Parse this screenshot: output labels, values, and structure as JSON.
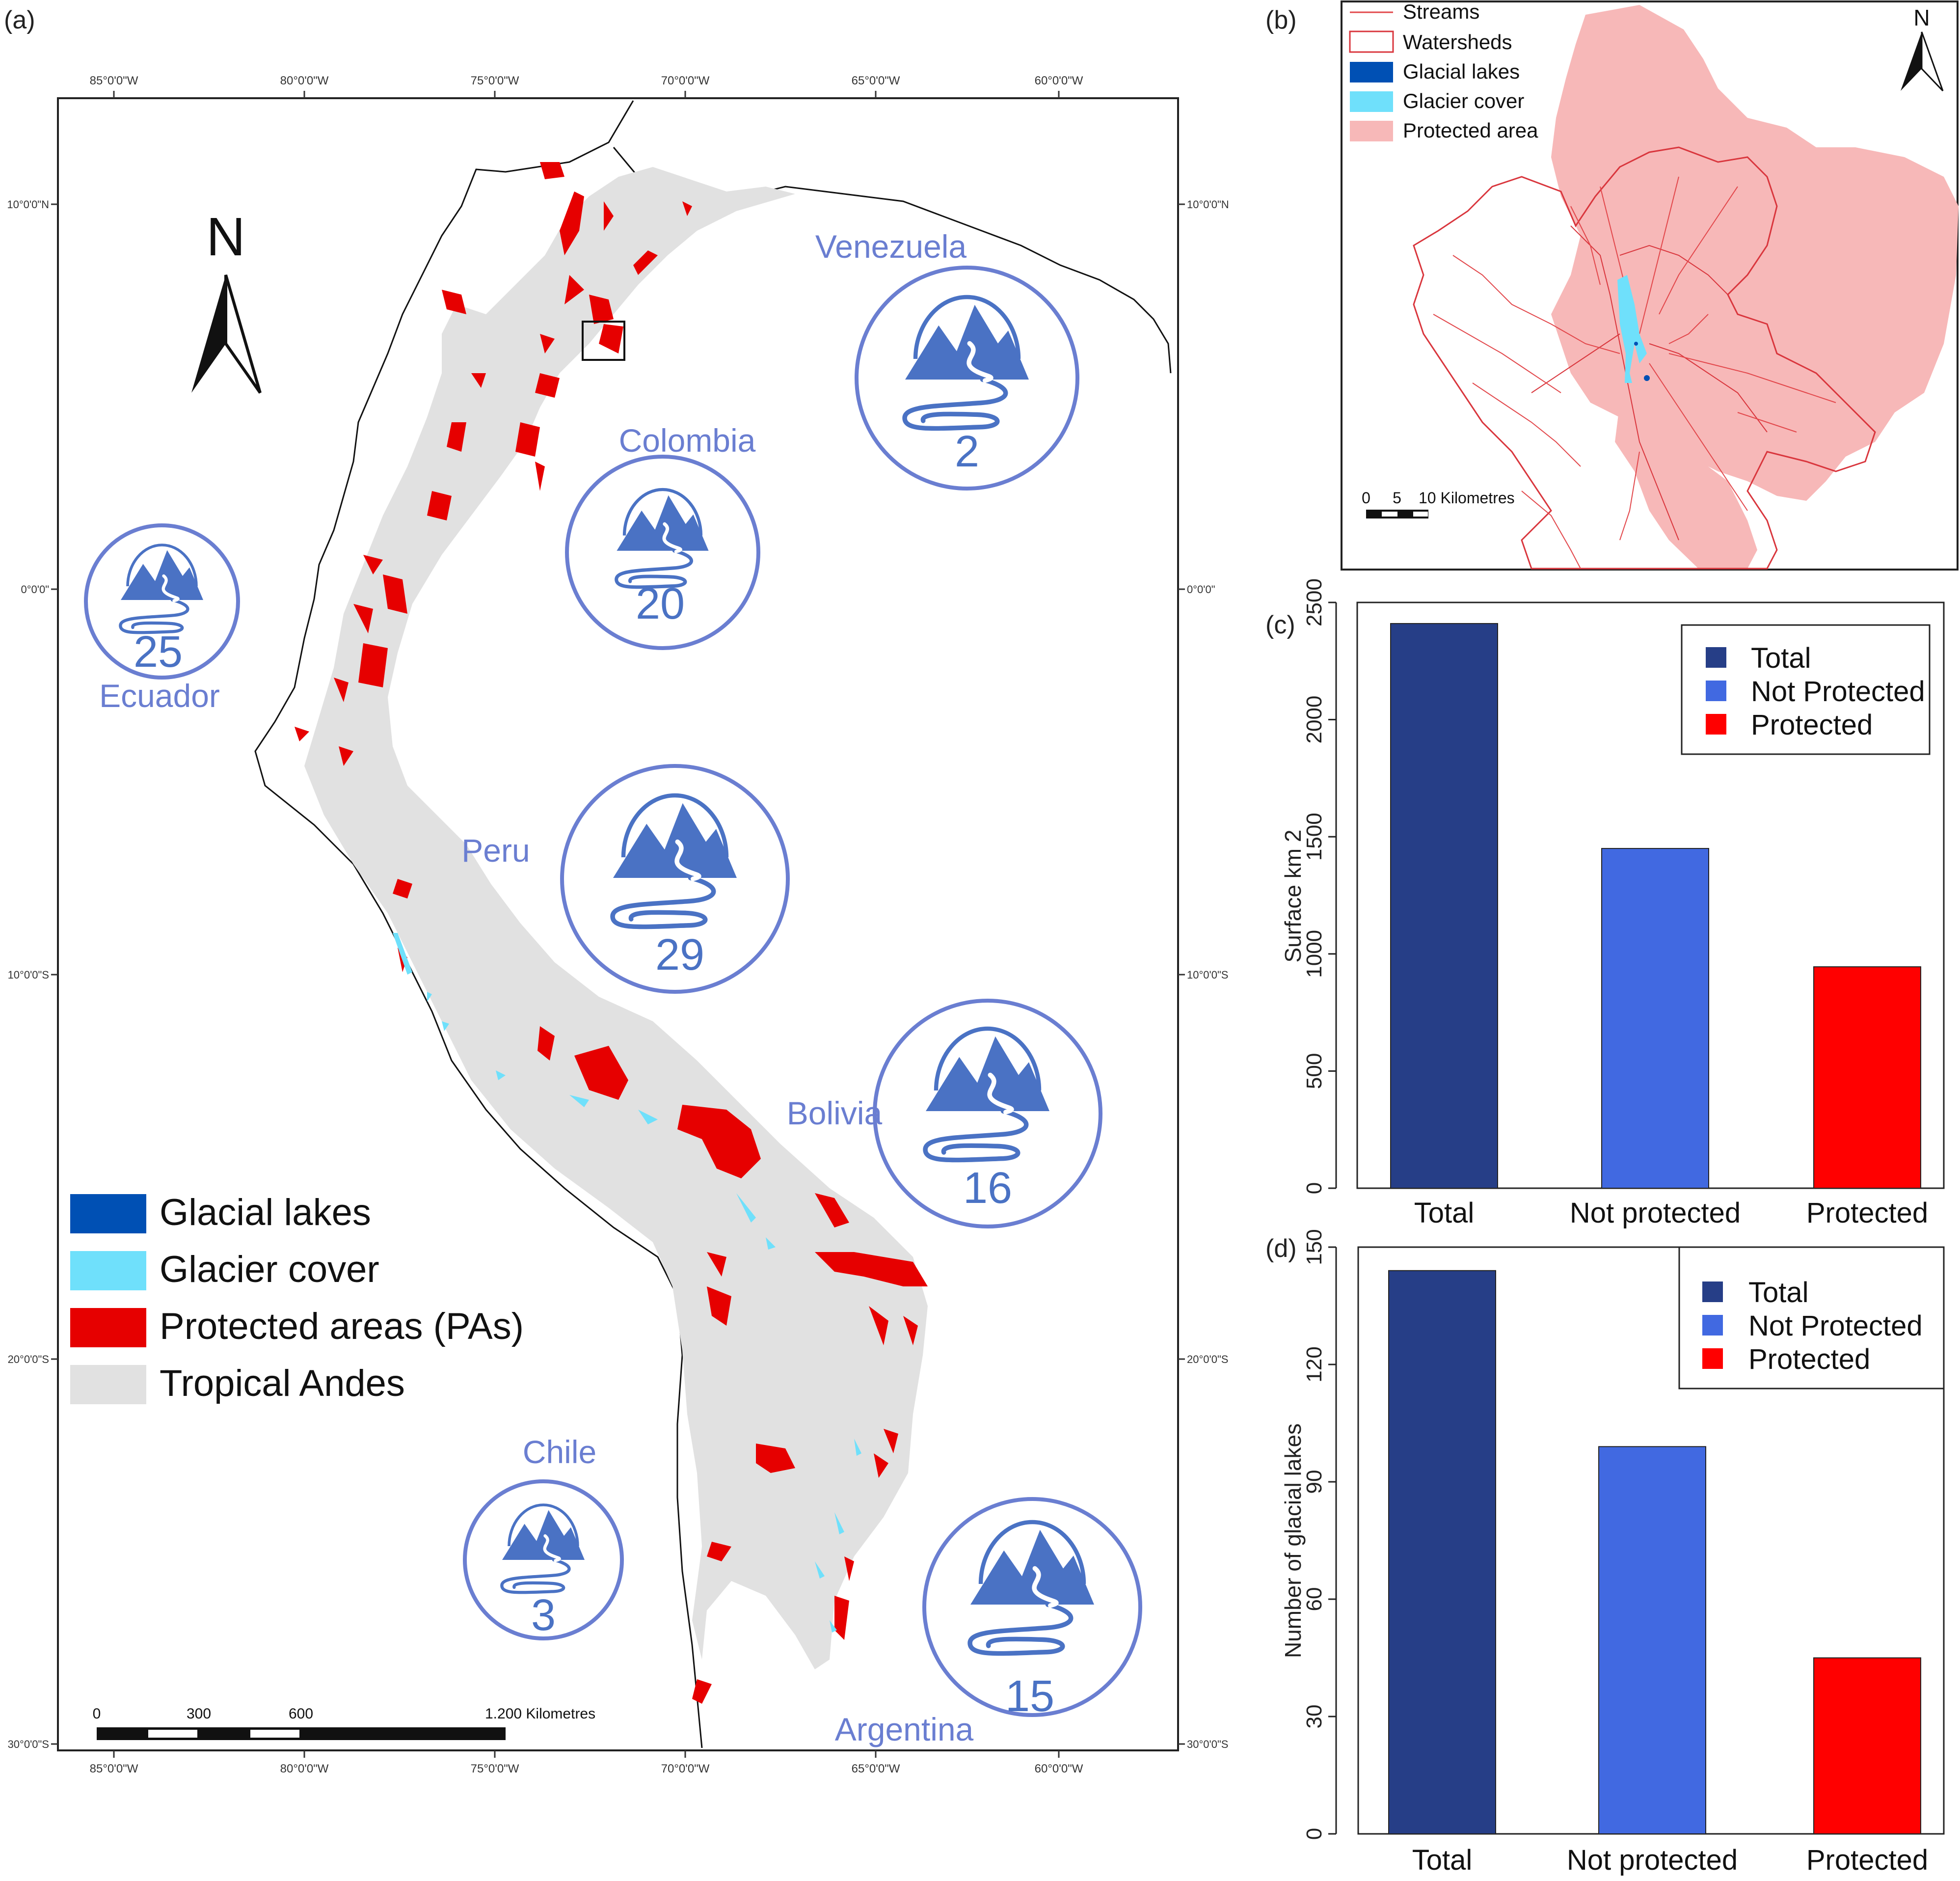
{
  "panels": {
    "a": "(a)",
    "b": "(b)",
    "c": "(c)",
    "d": "(d)"
  },
  "map": {
    "north_label": "N",
    "top_ticks": [
      "85°0'0\"W",
      "80°0'0\"W",
      "75°0'0\"W",
      "70°0'0\"W",
      "65°0'0\"W",
      "60°0'0\"W"
    ],
    "bottom_ticks": [
      "85°0'0\"W",
      "80°0'0\"W",
      "75°0'0\"W",
      "70°0'0\"W",
      "65°0'0\"W",
      "60°0'0\"W"
    ],
    "left_ticks": [
      "10°0'0\"N",
      "0°0'0\"",
      "10°0'0\"S",
      "20°0'0\"S",
      "30°0'0\"S"
    ],
    "right_ticks": [
      "10°0'0\"N",
      "0°0'0\"",
      "10°0'0\"S",
      "20°0'0\"S",
      "30°0'0\"S"
    ],
    "countries": [
      {
        "name": "Venezuela",
        "count": "2"
      },
      {
        "name": "Colombia",
        "count": "20"
      },
      {
        "name": "Ecuador",
        "count": "25"
      },
      {
        "name": "Peru",
        "count": "29"
      },
      {
        "name": "Bolivia",
        "count": "16"
      },
      {
        "name": "Chile",
        "count": "3"
      },
      {
        "name": "Argentina",
        "count": "15"
      }
    ],
    "legend": [
      {
        "label": "Glacial lakes",
        "color": "#0050b4"
      },
      {
        "label": "Glacier cover",
        "color": "#6fe0fb"
      },
      {
        "label": "Protected areas (PAs)",
        "color": "#e60000"
      },
      {
        "label": "Tropical Andes",
        "color": "#e1e1e1"
      }
    ],
    "scale": {
      "ticks": [
        "0",
        "300",
        "600"
      ],
      "end": "1.200 Kilometres"
    }
  },
  "inset": {
    "legend": [
      {
        "label": "Streams",
        "color": "#e2474b"
      },
      {
        "label": "Watersheds",
        "color": "#d9363d"
      },
      {
        "label": "Glacial lakes",
        "color": "#0050b4"
      },
      {
        "label": "Glacier cover",
        "color": "#6fe0fb"
      },
      {
        "label": "Protected area",
        "color": "#f7b8b8"
      }
    ],
    "north_label": "N",
    "scale_ticks": [
      "0",
      "5",
      "10 Kilometres"
    ]
  },
  "chart_data": [
    {
      "type": "bar",
      "title": "",
      "categories": [
        "Total",
        "Not protected",
        "Protected"
      ],
      "values": [
        2410,
        1450,
        945
      ],
      "colors": [
        "#263e87",
        "#4169e1",
        "#ff0000"
      ],
      "xlabel": "",
      "ylabel": "Surface km 2",
      "ylim": [
        0,
        2500
      ],
      "yticks": [
        "0",
        "500",
        "1000",
        "1500",
        "2000",
        "2500"
      ],
      "legend": [
        "Total",
        "Not Protected",
        "Protected"
      ],
      "legend_position": "top-right"
    },
    {
      "type": "bar",
      "title": "",
      "categories": [
        "Total",
        "Not protected",
        "Protected"
      ],
      "values": [
        144,
        99,
        45
      ],
      "colors": [
        "#263e87",
        "#4169e1",
        "#ff0000"
      ],
      "xlabel": "",
      "ylabel": "Number of glacial lakes",
      "ylim": [
        0,
        150
      ],
      "yticks": [
        "0",
        "30",
        "60",
        "90",
        "120",
        "150"
      ],
      "legend": [
        "Total",
        "Not Protected",
        "Protected"
      ],
      "legend_position": "top-right"
    }
  ]
}
